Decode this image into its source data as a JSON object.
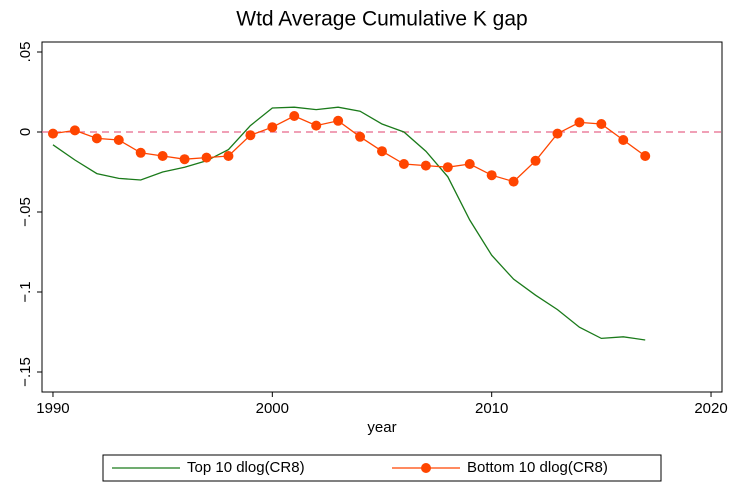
{
  "chart_data": {
    "type": "line",
    "title": "Wtd Average Cumulative K gap",
    "x_label": "year",
    "x": [
      1990,
      1991,
      1992,
      1993,
      1994,
      1995,
      1996,
      1997,
      1998,
      1999,
      2000,
      2001,
      2002,
      2003,
      2004,
      2005,
      2006,
      2007,
      2008,
      2009,
      2010,
      2011,
      2012,
      2013,
      2014,
      2015,
      2016,
      2017
    ],
    "series": [
      {
        "name": "Top 10 dlog(CR8)",
        "color": "#1a7a1a",
        "marker": false,
        "values": [
          -0.008,
          -0.0175,
          -0.026,
          -0.029,
          -0.03,
          -0.025,
          -0.022,
          -0.018,
          -0.011,
          0.004,
          0.015,
          0.0155,
          0.014,
          0.0155,
          0.013,
          0.005,
          0.0,
          -0.012,
          -0.028,
          -0.055,
          -0.077,
          -0.092,
          -0.102,
          -0.111,
          -0.122,
          -0.129,
          -0.128,
          -0.13
        ]
      },
      {
        "name": "Bottom 10 dlog(CR8)",
        "color": "#ff4500",
        "marker": true,
        "values": [
          -0.001,
          0.001,
          -0.004,
          -0.005,
          -0.013,
          -0.015,
          -0.017,
          -0.016,
          -0.015,
          -0.002,
          0.003,
          0.01,
          0.004,
          0.007,
          -0.003,
          -0.012,
          -0.02,
          -0.021,
          -0.022,
          -0.02,
          -0.027,
          -0.031,
          -0.018,
          -0.001,
          0.006,
          0.005,
          -0.005,
          -0.015
        ]
      }
    ],
    "hline": 0,
    "hline_color": "#e8688a",
    "xlim": [
      1989.5,
      2020.5
    ],
    "xticks": [
      1990,
      2000,
      2010,
      2020
    ],
    "ylim": [
      -0.1625,
      0.05625
    ],
    "yticks": [
      {
        "value": 0.05,
        "label": ".05"
      },
      0,
      {
        "value": -0.05,
        "label": "−.05"
      },
      {
        "value": -0.1,
        "label": "−.1"
      },
      {
        "value": -0.15,
        "label": "−.15"
      }
    ]
  }
}
